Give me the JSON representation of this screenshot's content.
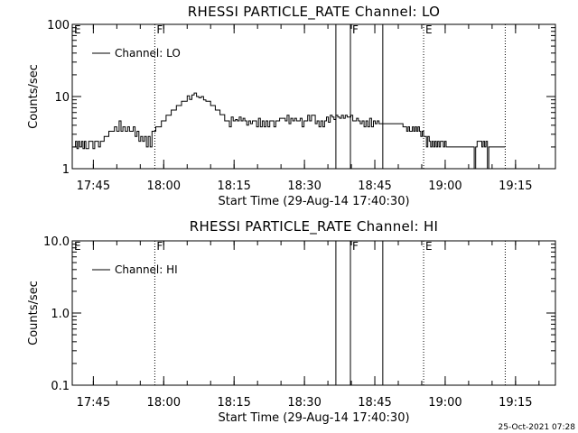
{
  "chart_data": [
    {
      "type": "line",
      "title": "RHESSI PARTICLE_RATE Channel: LO",
      "xlabel": "Start Time (29-Aug-14 17:40:30)",
      "ylabel": "Counts/sec",
      "yscale": "log",
      "ylim": [
        1,
        100
      ],
      "xlim": [
        0,
        103
      ],
      "x_ticks": [
        {
          "v": 4.5,
          "label": "17:45"
        },
        {
          "v": 19.5,
          "label": "18:00"
        },
        {
          "v": 34.5,
          "label": "18:15"
        },
        {
          "v": 49.5,
          "label": "18:30"
        },
        {
          "v": 64.5,
          "label": "18:45"
        },
        {
          "v": 79.5,
          "label": "19:00"
        },
        {
          "v": 94.5,
          "label": "19:15"
        }
      ],
      "y_ticks": [
        {
          "v": 1,
          "label": "1"
        },
        {
          "v": 10,
          "label": "10"
        },
        {
          "v": 100,
          "label": "100"
        }
      ],
      "legend": {
        "label": "Channel: LO",
        "position": "top-left"
      },
      "grid": false,
      "markers": [
        {
          "x": 17.6,
          "label": "F",
          "style": "dotted"
        },
        {
          "x": 56.2,
          "label": "",
          "style": "solid"
        },
        {
          "x": 59.3,
          "label": "F",
          "style": "solid"
        },
        {
          "x": 66.2,
          "label": "",
          "style": "solid"
        },
        {
          "x": 74.9,
          "label": "E",
          "style": "dotted"
        },
        {
          "x": 92.3,
          "label": "",
          "style": "dotted"
        }
      ],
      "corner_labels": [
        {
          "x": 0,
          "label": "E"
        }
      ],
      "series": [
        {
          "name": "Channel: LO",
          "points": [
            [
              0.3,
              2.0
            ],
            [
              0.7,
              2.4
            ],
            [
              1.0,
              1.9
            ],
            [
              1.3,
              2.4
            ],
            [
              1.6,
              2.0
            ],
            [
              2.0,
              2.4
            ],
            [
              2.3,
              1.9
            ],
            [
              2.6,
              2.4
            ],
            [
              2.9,
              1.9
            ],
            [
              3.5,
              2.4
            ],
            [
              4.0,
              2.4
            ],
            [
              4.4,
              1.9
            ],
            [
              4.8,
              2.4
            ],
            [
              5.2,
              2.4
            ],
            [
              5.6,
              2.0
            ],
            [
              6.0,
              2.4
            ],
            [
              6.4,
              2.4
            ],
            [
              6.8,
              2.8
            ],
            [
              7.3,
              2.8
            ],
            [
              7.8,
              3.3
            ],
            [
              8.5,
              3.3
            ],
            [
              9.0,
              3.8
            ],
            [
              9.5,
              3.3
            ],
            [
              10.0,
              4.6
            ],
            [
              10.4,
              3.3
            ],
            [
              10.8,
              3.8
            ],
            [
              11.3,
              3.3
            ],
            [
              11.8,
              3.8
            ],
            [
              12.2,
              3.3
            ],
            [
              12.6,
              3.3
            ],
            [
              13.0,
              3.8
            ],
            [
              13.4,
              2.8
            ],
            [
              13.8,
              3.3
            ],
            [
              14.2,
              2.4
            ],
            [
              14.6,
              2.8
            ],
            [
              15.0,
              2.4
            ],
            [
              15.4,
              2.8
            ],
            [
              15.8,
              2.0
            ],
            [
              16.2,
              2.8
            ],
            [
              16.6,
              2.0
            ],
            [
              17.0,
              3.3
            ],
            [
              17.4,
              3.3
            ],
            [
              17.8,
              3.8
            ],
            [
              18.2,
              3.8
            ],
            [
              18.6,
              3.8
            ],
            [
              19.0,
              4.6
            ],
            [
              19.5,
              4.6
            ],
            [
              20.0,
              5.5
            ],
            [
              20.6,
              5.5
            ],
            [
              21.1,
              6.5
            ],
            [
              21.7,
              6.5
            ],
            [
              22.2,
              7.5
            ],
            [
              22.8,
              7.5
            ],
            [
              23.3,
              8.6
            ],
            [
              24.0,
              8.6
            ],
            [
              24.5,
              10.2
            ],
            [
              25.0,
              9.1
            ],
            [
              25.5,
              10.5
            ],
            [
              26.0,
              11.2
            ],
            [
              26.5,
              10.0
            ],
            [
              27.0,
              9.6
            ],
            [
              27.5,
              10.0
            ],
            [
              28.0,
              9.0
            ],
            [
              28.5,
              8.6
            ],
            [
              29.0,
              8.6
            ],
            [
              29.5,
              7.5
            ],
            [
              30.0,
              7.5
            ],
            [
              30.5,
              6.5
            ],
            [
              31.0,
              6.5
            ],
            [
              31.5,
              5.6
            ],
            [
              32.0,
              5.6
            ],
            [
              32.5,
              4.6
            ],
            [
              33.0,
              4.6
            ],
            [
              33.5,
              3.8
            ],
            [
              33.9,
              5.2
            ],
            [
              34.3,
              4.6
            ],
            [
              34.8,
              4.8
            ],
            [
              35.2,
              4.6
            ],
            [
              35.6,
              5.2
            ],
            [
              36.0,
              4.6
            ],
            [
              36.4,
              5.0
            ],
            [
              36.8,
              4.6
            ],
            [
              37.2,
              4.0
            ],
            [
              37.6,
              4.6
            ],
            [
              38.0,
              4.2
            ],
            [
              38.4,
              4.6
            ],
            [
              38.8,
              4.6
            ],
            [
              39.3,
              3.8
            ],
            [
              39.7,
              5.0
            ],
            [
              40.1,
              3.8
            ],
            [
              40.5,
              4.6
            ],
            [
              40.9,
              3.8
            ],
            [
              41.3,
              4.6
            ],
            [
              41.7,
              3.8
            ],
            [
              42.1,
              4.6
            ],
            [
              42.5,
              4.6
            ],
            [
              43.0,
              3.8
            ],
            [
              43.4,
              4.6
            ],
            [
              43.8,
              4.6
            ],
            [
              44.2,
              5.0
            ],
            [
              44.6,
              5.0
            ],
            [
              45.0,
              5.0
            ],
            [
              45.4,
              4.6
            ],
            [
              45.8,
              5.5
            ],
            [
              46.2,
              4.2
            ],
            [
              46.6,
              5.0
            ],
            [
              47.0,
              4.6
            ],
            [
              47.4,
              5.0
            ],
            [
              47.8,
              4.6
            ],
            [
              48.2,
              4.6
            ],
            [
              48.6,
              5.0
            ],
            [
              49.0,
              3.8
            ],
            [
              49.4,
              4.6
            ],
            [
              49.8,
              4.6
            ],
            [
              50.2,
              5.5
            ],
            [
              50.6,
              4.6
            ],
            [
              51.0,
              5.5
            ],
            [
              51.4,
              5.5
            ],
            [
              51.8,
              4.2
            ],
            [
              52.2,
              4.6
            ],
            [
              52.6,
              3.8
            ],
            [
              53.0,
              4.6
            ],
            [
              53.4,
              3.8
            ],
            [
              53.8,
              4.6
            ],
            [
              54.2,
              5.2
            ],
            [
              54.6,
              4.4
            ],
            [
              55.0,
              5.5
            ],
            [
              55.4,
              5.2
            ],
            [
              55.8,
              4.8
            ],
            [
              56.2,
              5.5
            ],
            [
              56.6,
              5.2
            ],
            [
              57.0,
              5.0
            ],
            [
              57.4,
              5.5
            ],
            [
              57.8,
              5.0
            ],
            [
              58.2,
              5.5
            ],
            [
              58.6,
              5.2
            ],
            [
              59.0,
              5.2
            ],
            [
              59.4,
              5.5
            ],
            [
              59.8,
              4.6
            ],
            [
              60.2,
              4.6
            ],
            [
              60.6,
              5.0
            ],
            [
              61.0,
              4.6
            ],
            [
              61.4,
              4.2
            ],
            [
              61.8,
              4.6
            ],
            [
              62.2,
              3.8
            ],
            [
              62.6,
              4.6
            ],
            [
              63.0,
              3.8
            ],
            [
              63.4,
              5.0
            ],
            [
              63.8,
              3.8
            ],
            [
              64.2,
              4.6
            ],
            [
              64.6,
              4.2
            ],
            [
              65.0,
              4.6
            ],
            [
              65.4,
              4.2
            ],
            [
              65.8,
              4.2
            ],
            [
              66.2,
              4.2
            ],
            [
              66.6,
              4.2
            ],
            [
              67.0,
              4.2
            ],
            [
              67.5,
              4.2
            ],
            [
              68.0,
              4.2
            ],
            [
              68.5,
              4.2
            ],
            [
              69.0,
              4.2
            ],
            [
              69.5,
              4.2
            ],
            [
              70.0,
              4.2
            ],
            [
              70.5,
              3.8
            ],
            [
              71.0,
              3.8
            ],
            [
              71.3,
              3.3
            ],
            [
              71.6,
              3.8
            ],
            [
              71.9,
              3.3
            ],
            [
              72.2,
              3.3
            ],
            [
              72.5,
              3.8
            ],
            [
              72.8,
              3.3
            ],
            [
              73.1,
              3.8
            ],
            [
              73.4,
              3.3
            ],
            [
              73.7,
              3.8
            ],
            [
              74.0,
              3.3
            ],
            [
              74.3,
              2.8
            ],
            [
              74.6,
              3.3
            ],
            [
              74.9,
              2.8
            ],
            [
              75.2,
              2.8
            ],
            [
              75.5,
              2.0
            ],
            [
              75.8,
              2.8
            ],
            [
              76.1,
              2.4
            ],
            [
              76.4,
              2.0
            ],
            [
              76.7,
              2.4
            ],
            [
              77.0,
              2.0
            ],
            [
              77.3,
              2.4
            ],
            [
              77.6,
              2.0
            ],
            [
              77.9,
              2.4
            ],
            [
              78.2,
              2.0
            ],
            [
              78.5,
              2.4
            ],
            [
              78.8,
              2.4
            ],
            [
              79.1,
              2.0
            ],
            [
              79.4,
              2.4
            ],
            [
              79.7,
              2.0
            ],
            [
              80.0,
              2.0
            ],
            [
              80.5,
              2.0
            ],
            [
              81.0,
              2.0
            ],
            [
              81.5,
              2.0
            ],
            [
              82.0,
              2.0
            ],
            [
              82.5,
              2.0
            ],
            [
              83.0,
              2.0
            ],
            [
              83.5,
              2.0
            ],
            [
              84.0,
              2.0
            ],
            [
              84.5,
              2.0
            ],
            [
              85.0,
              2.0
            ],
            [
              85.4,
              2.0
            ],
            [
              85.7,
              1.0
            ],
            [
              86.0,
              2.0
            ],
            [
              86.3,
              2.4
            ],
            [
              86.6,
              2.4
            ],
            [
              87.0,
              2.4
            ],
            [
              87.3,
              2.0
            ],
            [
              87.6,
              2.4
            ],
            [
              87.9,
              2.0
            ],
            [
              88.2,
              2.4
            ],
            [
              88.5,
              1.0
            ],
            [
              88.8,
              2.0
            ],
            [
              89.5,
              2.0
            ],
            [
              90.5,
              2.0
            ],
            [
              91.5,
              2.0
            ],
            [
              92.3,
              2.0
            ]
          ]
        }
      ]
    },
    {
      "type": "line",
      "title": "RHESSI PARTICLE_RATE Channel: HI",
      "xlabel": "Start Time (29-Aug-14 17:40:30)",
      "ylabel": "Counts/sec",
      "yscale": "log",
      "ylim": [
        0.1,
        10
      ],
      "xlim": [
        0,
        103
      ],
      "x_ticks": [
        {
          "v": 4.5,
          "label": "17:45"
        },
        {
          "v": 19.5,
          "label": "18:00"
        },
        {
          "v": 34.5,
          "label": "18:15"
        },
        {
          "v": 49.5,
          "label": "18:30"
        },
        {
          "v": 64.5,
          "label": "18:45"
        },
        {
          "v": 79.5,
          "label": "19:00"
        },
        {
          "v": 94.5,
          "label": "19:15"
        }
      ],
      "y_ticks": [
        {
          "v": 0.1,
          "label": "0.1"
        },
        {
          "v": 1,
          "label": "1.0"
        },
        {
          "v": 10,
          "label": "10.0"
        }
      ],
      "legend": {
        "label": "Channel: HI",
        "position": "top-left"
      },
      "grid": false,
      "markers": [
        {
          "x": 17.6,
          "label": "F",
          "style": "dotted"
        },
        {
          "x": 56.2,
          "label": "",
          "style": "solid"
        },
        {
          "x": 59.3,
          "label": "F",
          "style": "solid"
        },
        {
          "x": 66.2,
          "label": "",
          "style": "solid"
        },
        {
          "x": 74.9,
          "label": "E",
          "style": "dotted"
        },
        {
          "x": 92.3,
          "label": "",
          "style": "dotted"
        }
      ],
      "corner_labels": [
        {
          "x": 0,
          "label": "E"
        }
      ],
      "series": [
        {
          "name": "Channel: HI",
          "points": []
        }
      ]
    }
  ],
  "footer": {
    "timestamp": "25-Oct-2021 07:28"
  }
}
